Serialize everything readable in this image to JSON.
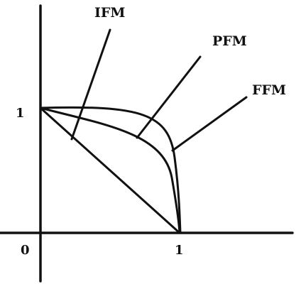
{
  "labels": {
    "ifm": "IFM",
    "pfm": "PFM",
    "ffm": "FFM"
  },
  "ticks": {
    "origin": "0",
    "x_one": "1",
    "y_one": "1"
  },
  "colors": {
    "ink": "#111111",
    "background": "#ffffff"
  }
}
